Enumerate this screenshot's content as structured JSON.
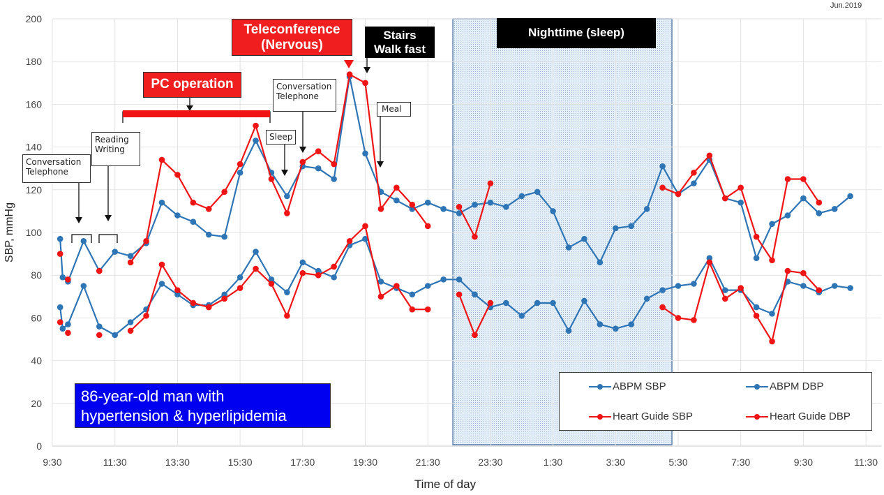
{
  "date_label": "Jun.2019",
  "patient_label": "86-year-old man with\nhypertension & hyperlipidemia",
  "annotations": {
    "conversation1": "Conversation\nTelephone",
    "reading": "Reading\nWriting",
    "pc": "PC operation",
    "sleep": "Sleep",
    "conversation2": "Conversation\nTelephone",
    "teleconference": "Teleconference\n(Nervous)",
    "stairs": "Stairs\nWalk fast",
    "meal": "Meal",
    "nighttime": "Nighttime (sleep)"
  },
  "colors": {
    "abpm": "#2e75b6",
    "heart_guide": "#f01414",
    "night_fill": "#dbe8f5",
    "night_border": "#5b7faa"
  },
  "chart_data": {
    "type": "line",
    "title": "",
    "xlabel": "Time of day",
    "ylabel": "SBP, mmHg",
    "ylim": [
      0,
      200
    ],
    "yticks": [
      0,
      20,
      40,
      60,
      80,
      100,
      120,
      140,
      160,
      180,
      200
    ],
    "xlim_hours": [
      9.5,
      36
    ],
    "xticks": [
      {
        "h": 9.5,
        "label": "9:30"
      },
      {
        "h": 11.5,
        "label": "11:30"
      },
      {
        "h": 13.5,
        "label": "13:30"
      },
      {
        "h": 15.5,
        "label": "15:30"
      },
      {
        "h": 17.5,
        "label": "17:30"
      },
      {
        "h": 19.5,
        "label": "19:30"
      },
      {
        "h": 21.5,
        "label": "21:30"
      },
      {
        "h": 23.5,
        "label": "23:30"
      },
      {
        "h": 25.5,
        "label": "1:30"
      },
      {
        "h": 27.5,
        "label": "3:30"
      },
      {
        "h": 29.5,
        "label": "5:30"
      },
      {
        "h": 31.5,
        "label": "7:30"
      },
      {
        "h": 33.5,
        "label": "9:30"
      },
      {
        "h": 35.5,
        "label": "11:30"
      }
    ],
    "grid": true,
    "legend_placement": "bottom-right",
    "nighttime_hours": [
      22.3,
      29.3
    ],
    "series": [
      {
        "name": "ABPM SBP",
        "color": "#2e75b6",
        "segments": [
          [
            [
              9.75,
              97
            ],
            [
              9.83,
              79
            ],
            [
              10,
              77
            ],
            [
              10.5,
              96
            ],
            [
              11,
              82
            ],
            [
              11.5,
              91
            ],
            [
              12,
              89
            ],
            [
              12.5,
              95
            ],
            [
              13,
              114
            ],
            [
              13.5,
              108
            ],
            [
              14,
              105
            ],
            [
              14.5,
              99
            ],
            [
              15,
              98
            ],
            [
              15.5,
              128
            ],
            [
              16,
              143
            ],
            [
              16.5,
              128
            ],
            [
              17,
              117
            ],
            [
              17.5,
              131
            ],
            [
              18,
              130
            ],
            [
              18.5,
              125
            ],
            [
              19,
              173
            ],
            [
              19.5,
              137
            ],
            [
              20,
              119
            ],
            [
              20.5,
              115
            ],
            [
              21,
              111
            ],
            [
              21.5,
              114
            ],
            [
              22,
              111
            ],
            [
              22.5,
              109
            ],
            [
              23,
              113
            ],
            [
              23.5,
              114
            ],
            [
              24,
              112
            ],
            [
              24.5,
              117
            ],
            [
              25,
              119
            ],
            [
              25.5,
              110
            ],
            [
              26,
              93
            ],
            [
              26.5,
              97
            ],
            [
              27,
              86
            ],
            [
              27.5,
              102
            ],
            [
              28,
              103
            ],
            [
              28.5,
              111
            ],
            [
              29,
              131
            ],
            [
              29.5,
              118
            ],
            [
              30,
              123
            ],
            [
              30.5,
              134
            ],
            [
              31,
              116
            ],
            [
              31.5,
              114
            ],
            [
              32,
              88
            ],
            [
              32.5,
              104
            ],
            [
              33,
              108
            ],
            [
              33.5,
              116
            ],
            [
              34,
              109
            ],
            [
              34.5,
              111
            ],
            [
              35,
              117
            ]
          ]
        ]
      },
      {
        "name": "ABPM DBP",
        "color": "#2e75b6",
        "segments": [
          [
            [
              9.75,
              65
            ],
            [
              9.83,
              55
            ],
            [
              10,
              57
            ],
            [
              10.5,
              75
            ],
            [
              11,
              56
            ],
            [
              11.5,
              52
            ],
            [
              12,
              58
            ],
            [
              12.5,
              64
            ],
            [
              13,
              76
            ],
            [
              13.5,
              71
            ],
            [
              14,
              66
            ],
            [
              14.5,
              66
            ],
            [
              15,
              71
            ],
            [
              15.5,
              79
            ],
            [
              16,
              91
            ],
            [
              16.5,
              78
            ],
            [
              17,
              72
            ],
            [
              17.5,
              86
            ],
            [
              18,
              82
            ],
            [
              18.5,
              79
            ],
            [
              19,
              94
            ],
            [
              19.5,
              97
            ],
            [
              20,
              77
            ],
            [
              20.5,
              74
            ],
            [
              21,
              71
            ],
            [
              21.5,
              75
            ],
            [
              22,
              78
            ],
            [
              22.5,
              78
            ],
            [
              23,
              71
            ],
            [
              23.5,
              65
            ],
            [
              24,
              67
            ],
            [
              24.5,
              61
            ],
            [
              25,
              67
            ],
            [
              25.5,
              67
            ],
            [
              26,
              54
            ],
            [
              26.5,
              68
            ],
            [
              27,
              57
            ],
            [
              27.5,
              55
            ],
            [
              28,
              57
            ],
            [
              28.5,
              69
            ],
            [
              29,
              73
            ],
            [
              29.5,
              75
            ],
            [
              30,
              76
            ],
            [
              30.5,
              88
            ],
            [
              31,
              73
            ],
            [
              31.5,
              73
            ],
            [
              32,
              65
            ],
            [
              32.5,
              62
            ],
            [
              33,
              77
            ],
            [
              33.5,
              75
            ],
            [
              34,
              72
            ],
            [
              34.5,
              75
            ],
            [
              35,
              74
            ]
          ]
        ]
      },
      {
        "name": "Heart Guide SBP",
        "color": "#f01414",
        "segments": [
          [
            [
              9.75,
              90
            ]
          ],
          [
            [
              10,
              78
            ]
          ],
          [
            [
              11,
              82
            ]
          ],
          [
            [
              12,
              86
            ],
            [
              12.5,
              96
            ],
            [
              13,
              134
            ],
            [
              13.5,
              127
            ],
            [
              14,
              114
            ],
            [
              14.5,
              111
            ],
            [
              15,
              119
            ],
            [
              15.5,
              132
            ],
            [
              16,
              150
            ],
            [
              16.5,
              125
            ],
            [
              17,
              109
            ],
            [
              17.5,
              133
            ],
            [
              18,
              138
            ],
            [
              18.5,
              132
            ],
            [
              19,
              174
            ],
            [
              19.5,
              170
            ],
            [
              20,
              111
            ],
            [
              20.5,
              121
            ],
            [
              21,
              113
            ],
            [
              21.5,
              103
            ]
          ],
          [
            [
              22.5,
              112
            ],
            [
              23,
              98
            ],
            [
              23.5,
              123
            ]
          ],
          [
            [
              29,
              121
            ],
            [
              29.5,
              118
            ],
            [
              30,
              128
            ],
            [
              30.5,
              136
            ],
            [
              31,
              116
            ],
            [
              31.5,
              121
            ],
            [
              32,
              98
            ],
            [
              32.5,
              87
            ],
            [
              33,
              125
            ],
            [
              33.5,
              125
            ],
            [
              34,
              114
            ]
          ]
        ]
      },
      {
        "name": "Heart Guide DBP",
        "color": "#f01414",
        "segments": [
          [
            [
              9.75,
              58
            ]
          ],
          [
            [
              10,
              53
            ]
          ],
          [
            [
              11,
              52
            ]
          ],
          [
            [
              12,
              54
            ],
            [
              12.5,
              61
            ],
            [
              13,
              85
            ],
            [
              13.5,
              73
            ],
            [
              14,
              67
            ],
            [
              14.5,
              65
            ],
            [
              15,
              69
            ],
            [
              15.5,
              74
            ],
            [
              16,
              83
            ],
            [
              16.5,
              76
            ],
            [
              17,
              61
            ],
            [
              17.5,
              81
            ],
            [
              18,
              80
            ],
            [
              18.5,
              84
            ],
            [
              19,
              96
            ],
            [
              19.5,
              103
            ],
            [
              20,
              70
            ],
            [
              20.5,
              75
            ],
            [
              21,
              64
            ],
            [
              21.5,
              64
            ]
          ],
          [
            [
              22.5,
              71
            ],
            [
              23,
              52
            ],
            [
              23.5,
              67
            ]
          ],
          [
            [
              29,
              65
            ],
            [
              29.5,
              60
            ],
            [
              30,
              59
            ],
            [
              30.5,
              86
            ],
            [
              31,
              69
            ],
            [
              31.5,
              74
            ],
            [
              32,
              61
            ],
            [
              32.5,
              49
            ],
            [
              33,
              82
            ],
            [
              33.5,
              81
            ],
            [
              34,
              73
            ]
          ]
        ]
      }
    ]
  }
}
